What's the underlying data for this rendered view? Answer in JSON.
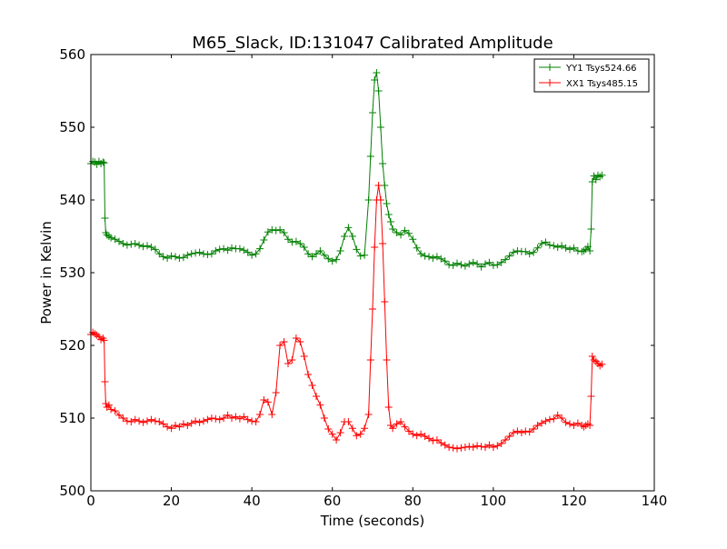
{
  "chart_data": {
    "type": "line",
    "title": "M65_Slack, ID:131047 Calibrated Amplitude",
    "xlabel": "Time (seconds)",
    "ylabel": "Power in Kelvin",
    "xlim": [
      0,
      140
    ],
    "ylim": [
      500,
      560
    ],
    "xticks": [
      0,
      20,
      40,
      60,
      80,
      100,
      120,
      140
    ],
    "yticks": [
      500,
      510,
      520,
      530,
      540,
      550,
      560
    ],
    "grid": false,
    "legend_position": "top-right",
    "marker": "+",
    "series": [
      {
        "name": "YY1 Tsys524.66",
        "color": "#008000",
        "points": [
          [
            0,
            545.0
          ],
          [
            0.5,
            545.3
          ],
          [
            1,
            545.2
          ],
          [
            1.5,
            544.9
          ],
          [
            2,
            545.3
          ],
          [
            2.5,
            545.0
          ],
          [
            3,
            545.2
          ],
          [
            3.3,
            545.1
          ],
          [
            3.5,
            537.5
          ],
          [
            3.7,
            535.5
          ],
          [
            4,
            535.2
          ],
          [
            4.5,
            535.0
          ],
          [
            5,
            534.8
          ],
          [
            6,
            534.6
          ],
          [
            7,
            534.3
          ],
          [
            8,
            534.0
          ],
          [
            9,
            533.8
          ],
          [
            10,
            533.9
          ],
          [
            11,
            534.0
          ],
          [
            12,
            533.8
          ],
          [
            13,
            533.6
          ],
          [
            14,
            533.7
          ],
          [
            15,
            533.5
          ],
          [
            16,
            533.2
          ],
          [
            17,
            532.6
          ],
          [
            18,
            532.2
          ],
          [
            19,
            532.0
          ],
          [
            20,
            532.3
          ],
          [
            21,
            532.2
          ],
          [
            22,
            532.0
          ],
          [
            23,
            532.1
          ],
          [
            24,
            532.4
          ],
          [
            25,
            532.6
          ],
          [
            26,
            532.7
          ],
          [
            27,
            532.8
          ],
          [
            28,
            532.6
          ],
          [
            29,
            532.5
          ],
          [
            30,
            532.6
          ],
          [
            31,
            533.0
          ],
          [
            32,
            533.2
          ],
          [
            33,
            533.3
          ],
          [
            34,
            533.1
          ],
          [
            35,
            533.4
          ],
          [
            36,
            533.3
          ],
          [
            37,
            533.3
          ],
          [
            38,
            533.1
          ],
          [
            39,
            532.8
          ],
          [
            40,
            532.4
          ],
          [
            41,
            532.6
          ],
          [
            42,
            533.3
          ],
          [
            43,
            534.5
          ],
          [
            44,
            535.6
          ],
          [
            45,
            535.9
          ],
          [
            46,
            535.8
          ],
          [
            47,
            535.9
          ],
          [
            48,
            535.5
          ],
          [
            49,
            534.6
          ],
          [
            50,
            534.2
          ],
          [
            51,
            534.3
          ],
          [
            52,
            534.0
          ],
          [
            53,
            533.5
          ],
          [
            54,
            532.6
          ],
          [
            55,
            532.2
          ],
          [
            56,
            532.6
          ],
          [
            57,
            533.0
          ],
          [
            58,
            532.4
          ],
          [
            59,
            531.9
          ],
          [
            60,
            531.6
          ],
          [
            61,
            531.8
          ],
          [
            62,
            533.0
          ],
          [
            63,
            535.0
          ],
          [
            64,
            536.2
          ],
          [
            65,
            535.0
          ],
          [
            66,
            533.2
          ],
          [
            67,
            532.3
          ],
          [
            68,
            532.4
          ],
          [
            69,
            540.0
          ],
          [
            69.5,
            546.0
          ],
          [
            70,
            552.0
          ],
          [
            70.5,
            556.5
          ],
          [
            71,
            557.5
          ],
          [
            71.5,
            555.0
          ],
          [
            72,
            550.0
          ],
          [
            72.5,
            545.0
          ],
          [
            73,
            542.0
          ],
          [
            73.5,
            539.5
          ],
          [
            74,
            538.0
          ],
          [
            74.5,
            537.0
          ],
          [
            75,
            536.0
          ],
          [
            76,
            535.5
          ],
          [
            77,
            535.2
          ],
          [
            78,
            535.8
          ],
          [
            79,
            535.4
          ],
          [
            80,
            534.6
          ],
          [
            81,
            533.4
          ],
          [
            82,
            532.6
          ],
          [
            83,
            532.3
          ],
          [
            84,
            532.2
          ],
          [
            85,
            532.0
          ],
          [
            86,
            532.2
          ],
          [
            87,
            531.9
          ],
          [
            88,
            531.6
          ],
          [
            89,
            531.1
          ],
          [
            90,
            531.0
          ],
          [
            91,
            531.3
          ],
          [
            92,
            531.1
          ],
          [
            93,
            530.9
          ],
          [
            94,
            531.2
          ],
          [
            95,
            531.4
          ],
          [
            96,
            531.2
          ],
          [
            97,
            530.8
          ],
          [
            98,
            531.2
          ],
          [
            99,
            531.4
          ],
          [
            100,
            531.0
          ],
          [
            101,
            531.1
          ],
          [
            102,
            531.4
          ],
          [
            103,
            531.8
          ],
          [
            104,
            532.3
          ],
          [
            105,
            532.8
          ],
          [
            106,
            533.0
          ],
          [
            107,
            532.9
          ],
          [
            108,
            532.9
          ],
          [
            109,
            532.6
          ],
          [
            110,
            532.8
          ],
          [
            111,
            533.4
          ],
          [
            112,
            534.0
          ],
          [
            113,
            534.2
          ],
          [
            114,
            533.8
          ],
          [
            115,
            533.7
          ],
          [
            116,
            533.5
          ],
          [
            117,
            533.7
          ],
          [
            118,
            533.4
          ],
          [
            119,
            533.2
          ],
          [
            120,
            533.4
          ],
          [
            121,
            533.0
          ],
          [
            122,
            532.9
          ],
          [
            122.5,
            533.0
          ],
          [
            123,
            533.2
          ],
          [
            123.5,
            533.6
          ],
          [
            124,
            533.0
          ],
          [
            124.3,
            536.0
          ],
          [
            124.6,
            542.5
          ],
          [
            125,
            543.3
          ],
          [
            125.5,
            542.8
          ],
          [
            126,
            543.4
          ],
          [
            126.5,
            543.2
          ],
          [
            127,
            543.4
          ]
        ]
      },
      {
        "name": "XX1 Tsys485.15",
        "color": "#ff0000",
        "points": [
          [
            0,
            521.5
          ],
          [
            0.5,
            521.8
          ],
          [
            1,
            521.6
          ],
          [
            1.5,
            521.4
          ],
          [
            2,
            521.2
          ],
          [
            2.5,
            520.8
          ],
          [
            3,
            521.0
          ],
          [
            3.3,
            520.7
          ],
          [
            3.5,
            515.0
          ],
          [
            3.7,
            512.0
          ],
          [
            4,
            511.5
          ],
          [
            4.5,
            511.8
          ],
          [
            5,
            511.2
          ],
          [
            6,
            511.0
          ],
          [
            7,
            510.4
          ],
          [
            8,
            510.0
          ],
          [
            9,
            509.6
          ],
          [
            10,
            509.5
          ],
          [
            11,
            509.8
          ],
          [
            12,
            509.6
          ],
          [
            13,
            509.4
          ],
          [
            14,
            509.6
          ],
          [
            15,
            509.8
          ],
          [
            16,
            509.6
          ],
          [
            17,
            509.5
          ],
          [
            18,
            509.2
          ],
          [
            19,
            508.8
          ],
          [
            20,
            508.6
          ],
          [
            21,
            509.0
          ],
          [
            22,
            508.8
          ],
          [
            23,
            509.2
          ],
          [
            24,
            509.0
          ],
          [
            25,
            509.3
          ],
          [
            26,
            509.6
          ],
          [
            27,
            509.4
          ],
          [
            28,
            509.6
          ],
          [
            29,
            509.8
          ],
          [
            30,
            510.0
          ],
          [
            31,
            509.9
          ],
          [
            32,
            509.8
          ],
          [
            33,
            510.0
          ],
          [
            34,
            510.4
          ],
          [
            35,
            510.0
          ],
          [
            36,
            510.2
          ],
          [
            37,
            509.9
          ],
          [
            38,
            510.2
          ],
          [
            39,
            509.8
          ],
          [
            40,
            509.6
          ],
          [
            41,
            509.5
          ],
          [
            42,
            510.5
          ],
          [
            43,
            512.5
          ],
          [
            44,
            512.2
          ],
          [
            45,
            510.5
          ],
          [
            46,
            513.5
          ],
          [
            47,
            520.0
          ],
          [
            48,
            520.5
          ],
          [
            49,
            517.5
          ],
          [
            50,
            518.0
          ],
          [
            51,
            521.0
          ],
          [
            52,
            520.5
          ],
          [
            53,
            518.5
          ],
          [
            54,
            516.0
          ],
          [
            55,
            514.5
          ],
          [
            56,
            513.0
          ],
          [
            57,
            511.8
          ],
          [
            58,
            510.0
          ],
          [
            59,
            508.5
          ],
          [
            60,
            507.8
          ],
          [
            61,
            507.0
          ],
          [
            62,
            508.0
          ],
          [
            63,
            509.5
          ],
          [
            64,
            509.5
          ],
          [
            65,
            508.6
          ],
          [
            66,
            507.6
          ],
          [
            67,
            507.8
          ],
          [
            68,
            508.6
          ],
          [
            69,
            510.5
          ],
          [
            69.5,
            518.0
          ],
          [
            70,
            525.0
          ],
          [
            70.5,
            533.5
          ],
          [
            71,
            540.0
          ],
          [
            71.5,
            542.0
          ],
          [
            72,
            540.0
          ],
          [
            72.5,
            534.0
          ],
          [
            73,
            526.0
          ],
          [
            73.5,
            518.0
          ],
          [
            74,
            511.5
          ],
          [
            74.5,
            509.0
          ],
          [
            75,
            508.6
          ],
          [
            76,
            509.2
          ],
          [
            77,
            509.5
          ],
          [
            78,
            508.8
          ],
          [
            79,
            508.2
          ],
          [
            80,
            507.8
          ],
          [
            81,
            507.6
          ],
          [
            82,
            507.8
          ],
          [
            83,
            507.5
          ],
          [
            84,
            507.2
          ],
          [
            85,
            506.9
          ],
          [
            86,
            507.0
          ],
          [
            87,
            506.6
          ],
          [
            88,
            506.3
          ],
          [
            89,
            506.0
          ],
          [
            90,
            505.9
          ],
          [
            91,
            505.8
          ],
          [
            92,
            505.9
          ],
          [
            93,
            506.0
          ],
          [
            94,
            506.1
          ],
          [
            95,
            506.0
          ],
          [
            96,
            506.2
          ],
          [
            97,
            506.1
          ],
          [
            98,
            506.0
          ],
          [
            99,
            506.3
          ],
          [
            100,
            506.0
          ],
          [
            101,
            506.2
          ],
          [
            102,
            506.5
          ],
          [
            103,
            507.0
          ],
          [
            104,
            507.5
          ],
          [
            105,
            508.0
          ],
          [
            106,
            508.2
          ],
          [
            107,
            508.0
          ],
          [
            108,
            508.2
          ],
          [
            109,
            508.1
          ],
          [
            110,
            508.5
          ],
          [
            111,
            509.0
          ],
          [
            112,
            509.3
          ],
          [
            113,
            509.6
          ],
          [
            114,
            509.8
          ],
          [
            115,
            509.9
          ],
          [
            116,
            510.4
          ],
          [
            117,
            510.0
          ],
          [
            118,
            509.4
          ],
          [
            119,
            509.2
          ],
          [
            120,
            509.0
          ],
          [
            121,
            509.3
          ],
          [
            122,
            509.0
          ],
          [
            122.5,
            508.8
          ],
          [
            123,
            509.0
          ],
          [
            123.5,
            509.2
          ],
          [
            124,
            509.0
          ],
          [
            124.3,
            513.0
          ],
          [
            124.6,
            518.5
          ],
          [
            125,
            518.0
          ],
          [
            125.5,
            517.8
          ],
          [
            126,
            517.5
          ],
          [
            126.5,
            517.2
          ],
          [
            127,
            517.4
          ]
        ]
      }
    ]
  }
}
